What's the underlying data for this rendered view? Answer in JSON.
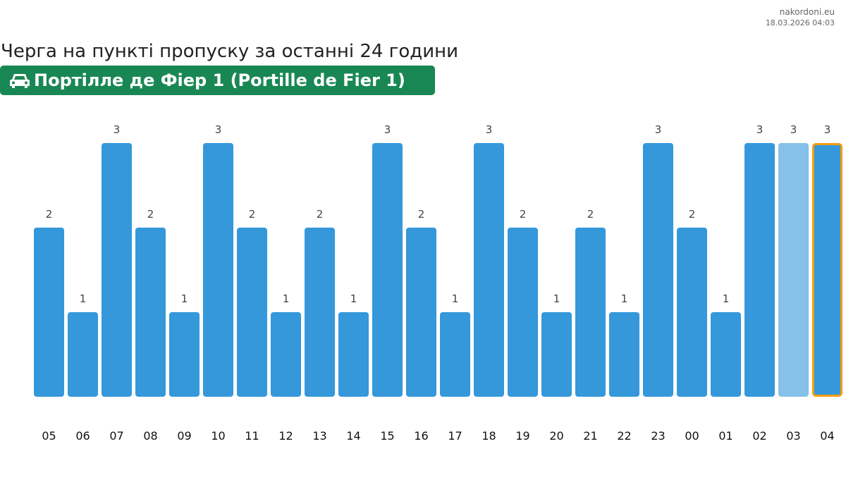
{
  "brand": {
    "site": "nakordoni.eu",
    "timestamp": "18.03.2026 04:03"
  },
  "header": {
    "title": "Черга на пункті пропуску за останні 24 години",
    "checkpoint": "Портілле де Фіер 1 (Portille de Fier 1)",
    "icon": "car-icon",
    "badge_color": "#198754"
  },
  "chart_data": {
    "type": "bar",
    "title": "Черга на пункті пропуску за останні 24 години",
    "categories": [
      "05",
      "06",
      "07",
      "08",
      "09",
      "10",
      "11",
      "12",
      "13",
      "14",
      "15",
      "16",
      "17",
      "18",
      "19",
      "20",
      "21",
      "22",
      "23",
      "00",
      "01",
      "02",
      "03",
      "04"
    ],
    "values": [
      2,
      1,
      3,
      2,
      1,
      3,
      2,
      1,
      2,
      1,
      3,
      2,
      1,
      3,
      2,
      1,
      2,
      1,
      3,
      2,
      1,
      3,
      3,
      3
    ],
    "ylim": [
      0,
      3
    ],
    "xlabel": "",
    "ylabel": "",
    "colors": {
      "bar": "#3498db",
      "light_bar": "#85c1e9",
      "highlight_border": "#f39c12"
    },
    "light_index": 22,
    "highlight_index": 23
  }
}
